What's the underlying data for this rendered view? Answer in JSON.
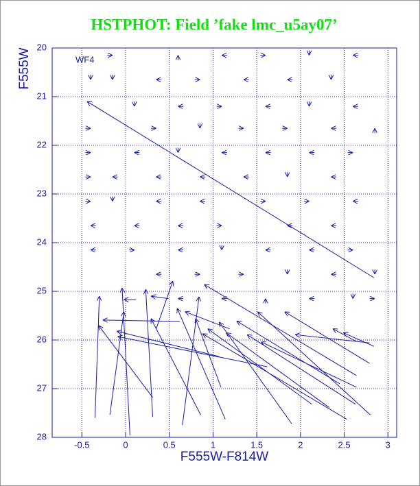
{
  "chart_data": {
    "type": "vector",
    "title": "HSTPHOT: Field ’fake lmc_u5ay07’",
    "annotation": "WF4",
    "x_label": "F555W-F814W",
    "y_label": "F555W",
    "xlim": [
      -0.84,
      3.1
    ],
    "ylim": [
      28,
      20
    ],
    "xticks": [
      -0.5,
      0,
      0.5,
      1,
      1.5,
      2,
      2.5,
      3
    ],
    "yticks": [
      20,
      21,
      22,
      23,
      24,
      25,
      26,
      27,
      28
    ],
    "grid": true,
    "color": "#1a1aa6",
    "arrows": [
      [
        2.84,
        24.72,
        -0.44,
        21.1
      ],
      [
        2.64,
        26.73,
        0.9,
        24.86
      ],
      [
        -0.35,
        27.6,
        -0.3,
        25.1
      ],
      [
        0.31,
        27.18,
        -0.31,
        25.7
      ],
      [
        0.05,
        27.96,
        -0.04,
        24.93
      ],
      [
        -0.18,
        27.54,
        -0.02,
        25.42
      ],
      [
        0.31,
        27.58,
        0.23,
        24.96
      ],
      [
        0.35,
        25.77,
        0.54,
        24.79
      ],
      [
        0.86,
        27.54,
        0.29,
        25.56
      ],
      [
        0.62,
        25.62,
        -0.26,
        25.59
      ],
      [
        0.12,
        25.17,
        -0.02,
        25.17
      ],
      [
        0.65,
        27.75,
        0.84,
        25.11
      ],
      [
        1.14,
        27.63,
        0.59,
        25.35
      ],
      [
        1.07,
        26.34,
        -0.1,
        25.82
      ],
      [
        0.49,
        25.15,
        0.29,
        25.1
      ],
      [
        1.09,
        26.97,
        0.8,
        25.56
      ],
      [
        2.53,
        27.63,
        0.88,
        25.87
      ],
      [
        1.9,
        27.72,
        1.07,
        25.63
      ],
      [
        2.13,
        27.32,
        0.94,
        25.77
      ],
      [
        2.8,
        27.54,
        1.51,
        25.42
      ],
      [
        2.79,
        26.48,
        1.82,
        25.42
      ],
      [
        2.79,
        26.06,
        1.94,
        25.89
      ],
      [
        2.84,
        26.13,
        2.49,
        25.85
      ],
      [
        2.63,
        27.32,
        1.39,
        25.89
      ],
      [
        2.45,
        26.9,
        1.27,
        25.61
      ],
      [
        2.64,
        26.97,
        1.55,
        26.04
      ],
      [
        2.64,
        26.03,
        2.37,
        25.77
      ],
      [
        2.33,
        27.39,
        1.15,
        25.85
      ],
      [
        1.62,
        26.55,
        -0.09,
        25.93
      ],
      [
        1.19,
        25.77,
        0.68,
        25.42
      ],
      [
        -0.21,
        20.15,
        -0.15,
        20.15
      ],
      [
        0.6,
        20.25,
        0.6,
        20.15
      ],
      [
        1.16,
        20.15,
        1.1,
        20.15
      ],
      [
        1.54,
        20.15,
        1.6,
        20.15
      ],
      [
        2.1,
        20.05,
        2.1,
        20.15
      ],
      [
        2.66,
        20.15,
        2.6,
        20.15
      ],
      [
        -0.4,
        20.55,
        -0.4,
        20.65
      ],
      [
        -0.15,
        20.55,
        -0.15,
        20.65
      ],
      [
        0.41,
        20.65,
        0.35,
        20.65
      ],
      [
        0.79,
        20.65,
        0.85,
        20.65
      ],
      [
        1.41,
        20.65,
        1.35,
        20.65
      ],
      [
        1.91,
        20.65,
        1.85,
        20.65
      ],
      [
        2.35,
        20.55,
        2.35,
        20.65
      ],
      [
        0.1,
        21.1,
        0.1,
        21.2
      ],
      [
        0.66,
        21.2,
        0.6,
        21.2
      ],
      [
        1.04,
        21.2,
        1.1,
        21.2
      ],
      [
        1.66,
        21.2,
        1.6,
        21.2
      ],
      [
        2.1,
        21.1,
        2.1,
        21.2
      ],
      [
        2.66,
        21.2,
        2.6,
        21.2
      ],
      [
        -0.46,
        21.65,
        -0.4,
        21.65
      ],
      [
        0.29,
        21.65,
        0.35,
        21.65
      ],
      [
        0.85,
        21.55,
        0.85,
        21.65
      ],
      [
        1.29,
        21.65,
        1.35,
        21.65
      ],
      [
        1.79,
        21.65,
        1.85,
        21.65
      ],
      [
        2.41,
        21.65,
        2.35,
        21.65
      ],
      [
        2.85,
        21.75,
        2.85,
        21.65
      ],
      [
        -0.46,
        22.15,
        -0.4,
        22.15
      ],
      [
        0.16,
        22.15,
        0.1,
        22.15
      ],
      [
        0.6,
        22.05,
        0.6,
        22.15
      ],
      [
        1.16,
        22.15,
        1.1,
        22.15
      ],
      [
        1.66,
        22.15,
        1.6,
        22.15
      ],
      [
        2.16,
        22.15,
        2.1,
        22.15
      ],
      [
        2.54,
        22.15,
        2.6,
        22.15
      ],
      [
        -0.46,
        22.65,
        -0.4,
        22.65
      ],
      [
        -0.09,
        22.65,
        -0.15,
        22.65
      ],
      [
        0.41,
        22.65,
        0.35,
        22.65
      ],
      [
        0.91,
        22.65,
        0.85,
        22.65
      ],
      [
        1.41,
        22.65,
        1.35,
        22.65
      ],
      [
        1.85,
        22.55,
        1.85,
        22.65
      ],
      [
        2.41,
        22.65,
        2.35,
        22.65
      ],
      [
        -0.46,
        23.15,
        -0.4,
        23.15
      ],
      [
        -0.15,
        23.05,
        -0.15,
        23.15
      ],
      [
        0.41,
        23.15,
        0.35,
        23.15
      ],
      [
        0.91,
        23.15,
        0.85,
        23.15
      ],
      [
        1.54,
        23.15,
        1.6,
        23.15
      ],
      [
        2.04,
        23.15,
        2.1,
        23.15
      ],
      [
        2.66,
        23.15,
        2.6,
        23.15
      ],
      [
        -0.34,
        23.65,
        -0.4,
        23.65
      ],
      [
        0.16,
        23.65,
        0.1,
        23.65
      ],
      [
        0.66,
        23.65,
        0.6,
        23.65
      ],
      [
        1.04,
        23.65,
        1.1,
        23.65
      ],
      [
        1.91,
        23.65,
        1.85,
        23.65
      ],
      [
        2.41,
        23.65,
        2.35,
        23.65
      ],
      [
        -0.34,
        24.15,
        -0.4,
        24.15
      ],
      [
        0.04,
        24.15,
        0.1,
        24.15
      ],
      [
        0.66,
        24.15,
        0.6,
        24.15
      ],
      [
        1.1,
        24.05,
        1.1,
        24.15
      ],
      [
        1.66,
        24.15,
        1.6,
        24.15
      ],
      [
        2.16,
        24.15,
        2.1,
        24.15
      ],
      [
        2.54,
        24.15,
        2.6,
        24.15
      ],
      [
        0.41,
        24.65,
        0.35,
        24.65
      ],
      [
        0.79,
        24.65,
        0.85,
        24.65
      ],
      [
        1.29,
        24.65,
        1.35,
        24.65
      ],
      [
        1.85,
        24.55,
        1.85,
        24.65
      ],
      [
        2.41,
        24.65,
        2.35,
        24.65
      ],
      [
        2.85,
        24.55,
        2.85,
        24.65
      ],
      [
        0.66,
        25.15,
        0.6,
        25.15
      ],
      [
        1.16,
        25.15,
        1.1,
        25.15
      ],
      [
        1.6,
        25.25,
        1.6,
        25.15
      ],
      [
        2.16,
        25.15,
        2.1,
        25.15
      ],
      [
        2.6,
        25.05,
        2.6,
        25.15
      ],
      [
        2.79,
        25.15,
        2.85,
        25.15
      ]
    ]
  }
}
